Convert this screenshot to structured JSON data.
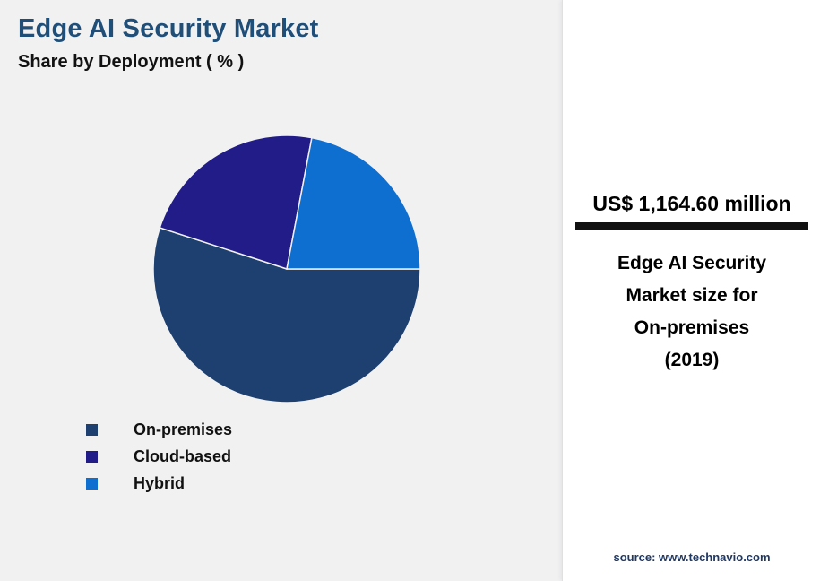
{
  "title": "Edge AI Security Market",
  "subtitle": "Share by Deployment ( % )",
  "chart_data": {
    "type": "pie",
    "title": "Edge AI Security Market Share by Deployment (%)",
    "categories": [
      "On-premises",
      "Cloud-based",
      "Hybrid"
    ],
    "values": [
      55,
      23,
      22
    ],
    "colors": [
      "#1d4070",
      "#211c87",
      "#0f6fd1"
    ],
    "start_angle_deg": 0,
    "direction": "clockwise",
    "legend_position": "bottom-left"
  },
  "legend": {
    "items": [
      {
        "label": "On-premises"
      },
      {
        "label": "Cloud-based"
      },
      {
        "label": "Hybrid"
      }
    ]
  },
  "panel": {
    "value": "US$ 1,164.60 million",
    "description_lines": {
      "line1": "Edge AI Security",
      "line2": "Market size for",
      "line3": "On-premises",
      "line4": "(2019)"
    },
    "source": "source: www.technavio.com"
  },
  "colors": {
    "title": "#1f4e79",
    "background": "#f1f1f2",
    "panel_background": "#ffffff",
    "rule": "#111111",
    "source_text": "#1f3864"
  }
}
